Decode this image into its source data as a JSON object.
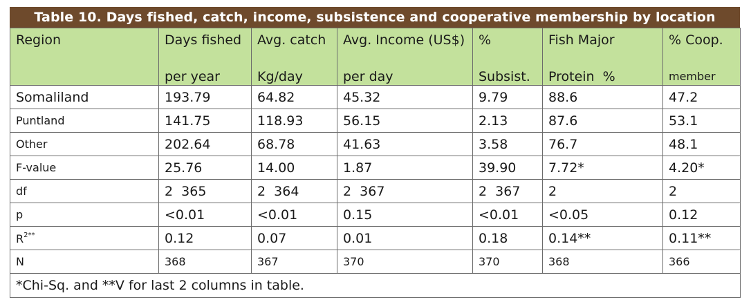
{
  "table": {
    "title": "Table 10. Days fished, catch, income, subsistence and cooperative membership by location",
    "headers": [
      {
        "line1": "Region",
        "line2": ""
      },
      {
        "line1": "Days fished",
        "line2": "per year"
      },
      {
        "line1": "Avg. catch",
        "line2": "Kg/day"
      },
      {
        "line1": "Avg. Income (US$)",
        "line2": "per day"
      },
      {
        "line1": "%",
        "line2": "Subsist."
      },
      {
        "line1": "Fish Major",
        "line2": "Protein  %"
      },
      {
        "line1": "% Coop.",
        "line2": "member"
      }
    ],
    "rows": [
      {
        "label": "Somaliland",
        "cells": [
          "193.79",
          "64.82",
          "45.32",
          "9.79",
          "88.6",
          "47.2"
        ]
      },
      {
        "label": "Puntland",
        "cells": [
          "141.75",
          "118.93",
          "56.15",
          "2.13",
          "87.6",
          "53.1"
        ]
      },
      {
        "label": "Other",
        "cells": [
          "202.64",
          "68.78",
          "41.63",
          "3.58",
          "76.7",
          "48.1"
        ]
      },
      {
        "label": "F-value",
        "cells": [
          "25.76",
          "14.00",
          "1.87",
          "39.90",
          "7.72*",
          "4.20*"
        ]
      },
      {
        "label": "df",
        "cells": [
          "2  365",
          "2  364",
          "2  367",
          "2  367",
          "2",
          "2"
        ]
      },
      {
        "label": "p",
        "cells": [
          "<0.01",
          "<0.01",
          "0.15",
          "<0.01",
          "<0.05",
          "0.12"
        ]
      },
      {
        "label": "R",
        "label_sup": "2**",
        "cells": [
          "0.12",
          "0.07",
          "0.01",
          "0.18",
          "0.14**",
          "0.11**"
        ]
      },
      {
        "label": "N",
        "cells": [
          "368",
          "367",
          "370",
          "370",
          "368",
          "366"
        ]
      }
    ],
    "footnote": "*Chi-Sq. and **V for last 2 columns in table."
  },
  "colors": {
    "title_bg": "#6e4a2c",
    "header_bg": "#c3e19c",
    "border": "#6b6b6b"
  }
}
